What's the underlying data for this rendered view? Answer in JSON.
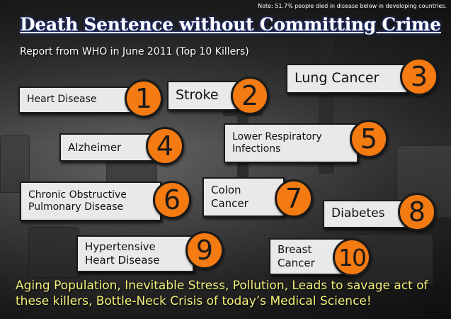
{
  "note": "Note: 51.7% people died in disease below in developing countries.",
  "title": "Death Sentence without Committing Crime",
  "subtitle": "Report from WHO in June 2011 (Top 10 Killers)",
  "killers": [
    {
      "rank": "1",
      "name": "Heart Disease"
    },
    {
      "rank": "2",
      "name": "Stroke"
    },
    {
      "rank": "3",
      "name": "Lung Cancer"
    },
    {
      "rank": "4",
      "name": "Alzheimer"
    },
    {
      "rank": "5",
      "name": "Lower Respiratory Infections"
    },
    {
      "rank": "6",
      "name": "Chronic Obstructive Pulmonary Disease"
    },
    {
      "rank": "7",
      "name": "Colon Cancer"
    },
    {
      "rank": "8",
      "name": "Diabetes"
    },
    {
      "rank": "9",
      "name": "Hypertensive Heart Disease"
    },
    {
      "rank": "10",
      "name": "Breast Cancer"
    }
  ],
  "footer": "Aging Population, Inevitable Stress, Pollution, Leads to savage act of these killers, Bottle-Neck Crisis of today’s Medical Science!"
}
